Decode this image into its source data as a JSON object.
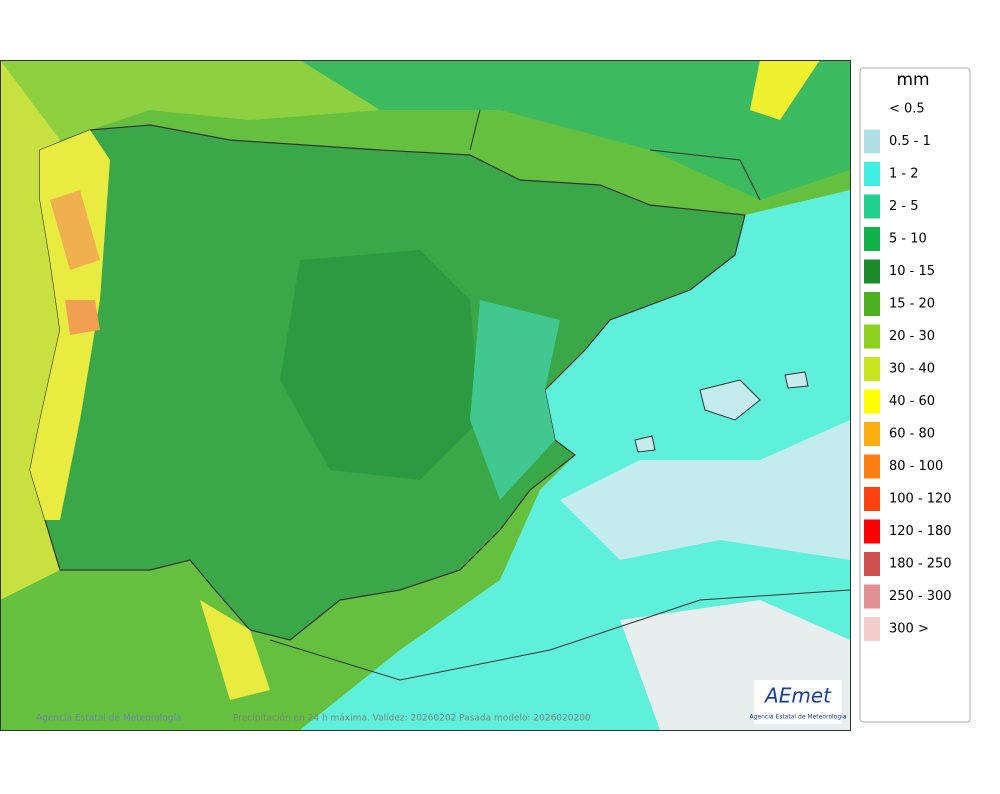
{
  "legend": {
    "title": "mm",
    "items": [
      {
        "label": "< 0.5",
        "color": "#ffffff"
      },
      {
        "label": "0.5 - 1",
        "color": "#b0e0e6"
      },
      {
        "label": "1 - 2",
        "color": "#3ff0e0"
      },
      {
        "label": "2 - 5",
        "color": "#20d090"
      },
      {
        "label": "5 - 10",
        "color": "#10b04a"
      },
      {
        "label": "10 - 15",
        "color": "#1a8a2a"
      },
      {
        "label": "15 - 20",
        "color": "#4cb020"
      },
      {
        "label": "20 - 30",
        "color": "#8ed020"
      },
      {
        "label": "30 - 40",
        "color": "#c8e620"
      },
      {
        "label": "40 - 60",
        "color": "#ffff00"
      },
      {
        "label": "60 - 80",
        "color": "#ffb010"
      },
      {
        "label": "80 - 100",
        "color": "#ff8010"
      },
      {
        "label": "100 - 120",
        "color": "#ff4010"
      },
      {
        "label": "120 - 180",
        "color": "#ff0000"
      },
      {
        "label": "180 - 250",
        "color": "#d05050"
      },
      {
        "label": "250 - 300",
        "color": "#e09090"
      },
      {
        "label": "300 >",
        "color": "#f4cccc"
      }
    ]
  },
  "footer": {
    "agency": "Agencia Estatal de Meteorología",
    "caption": "Precipitación en 24 h máxima. Validez: 20260202 Pasada modelo: 2026020200"
  },
  "logo": {
    "name": "AEmet",
    "subtitle": "Agencia Estatal de Meteorología"
  }
}
